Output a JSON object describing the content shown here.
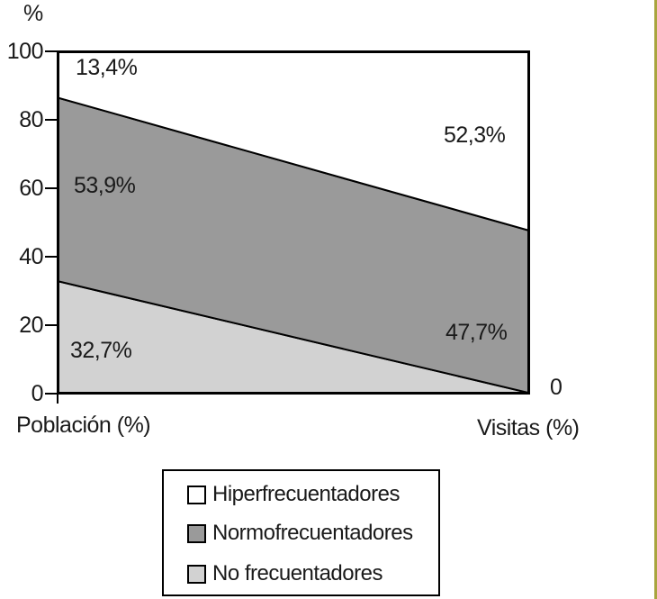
{
  "chart_data": {
    "type": "area",
    "stacked": true,
    "title": "",
    "xlabel": "",
    "ylabel": "%",
    "ylim": [
      0,
      100
    ],
    "grid": false,
    "legend_position": "bottom",
    "categories": [
      "Población (%)",
      "Visitas (%)"
    ],
    "yticks": [
      "100",
      "80",
      "60",
      "40",
      "20",
      "0"
    ],
    "series": [
      {
        "name": "No frecuentadores",
        "values": [
          32.7,
          0
        ],
        "labels": [
          "32,7%",
          "0"
        ],
        "color": "#d2d2d2"
      },
      {
        "name": "Normofrecuentadores",
        "values": [
          53.9,
          47.7
        ],
        "labels": [
          "53,9%",
          "47,7%"
        ],
        "color": "#9a9a9a"
      },
      {
        "name": "Hiperfrecuentadores",
        "values": [
          13.4,
          52.3
        ],
        "labels": [
          "13,4%",
          "52,3%"
        ],
        "color": "#ffffff"
      }
    ],
    "line_color": "#000000"
  },
  "accent_border_color": "#a8a43e"
}
